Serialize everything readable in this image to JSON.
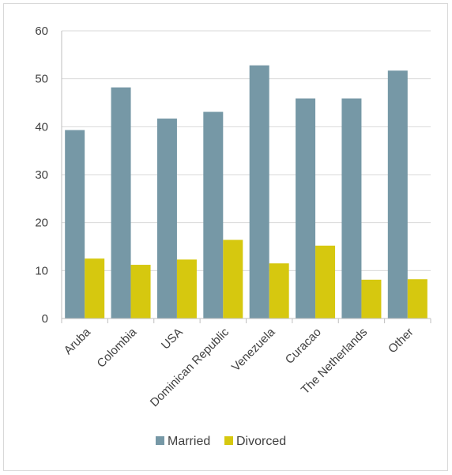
{
  "chart_data": {
    "type": "bar",
    "title": "",
    "xlabel": "",
    "ylabel": "",
    "categories": [
      "Aruba",
      "Colombia",
      "USA",
      "Dominican Republic",
      "Venezuela",
      "Curacao",
      "The Netherlands",
      "Other"
    ],
    "series": [
      {
        "name": "Married",
        "values": [
          39.3,
          48.2,
          41.7,
          43.1,
          52.8,
          45.9,
          45.9,
          51.7
        ],
        "color": "#7698a6"
      },
      {
        "name": "Divorced",
        "values": [
          12.5,
          11.2,
          12.3,
          16.4,
          11.5,
          15.2,
          8.1,
          8.2
        ],
        "color": "#d6c80f"
      }
    ],
    "ylim": [
      0,
      60
    ],
    "yticks": [
      0,
      10,
      20,
      30,
      40,
      50,
      60
    ],
    "grid": true,
    "legend": "bottom"
  },
  "colors": {
    "gridline": "#d9d9d9",
    "axis": "#bfbfbf",
    "text": "#404040"
  }
}
